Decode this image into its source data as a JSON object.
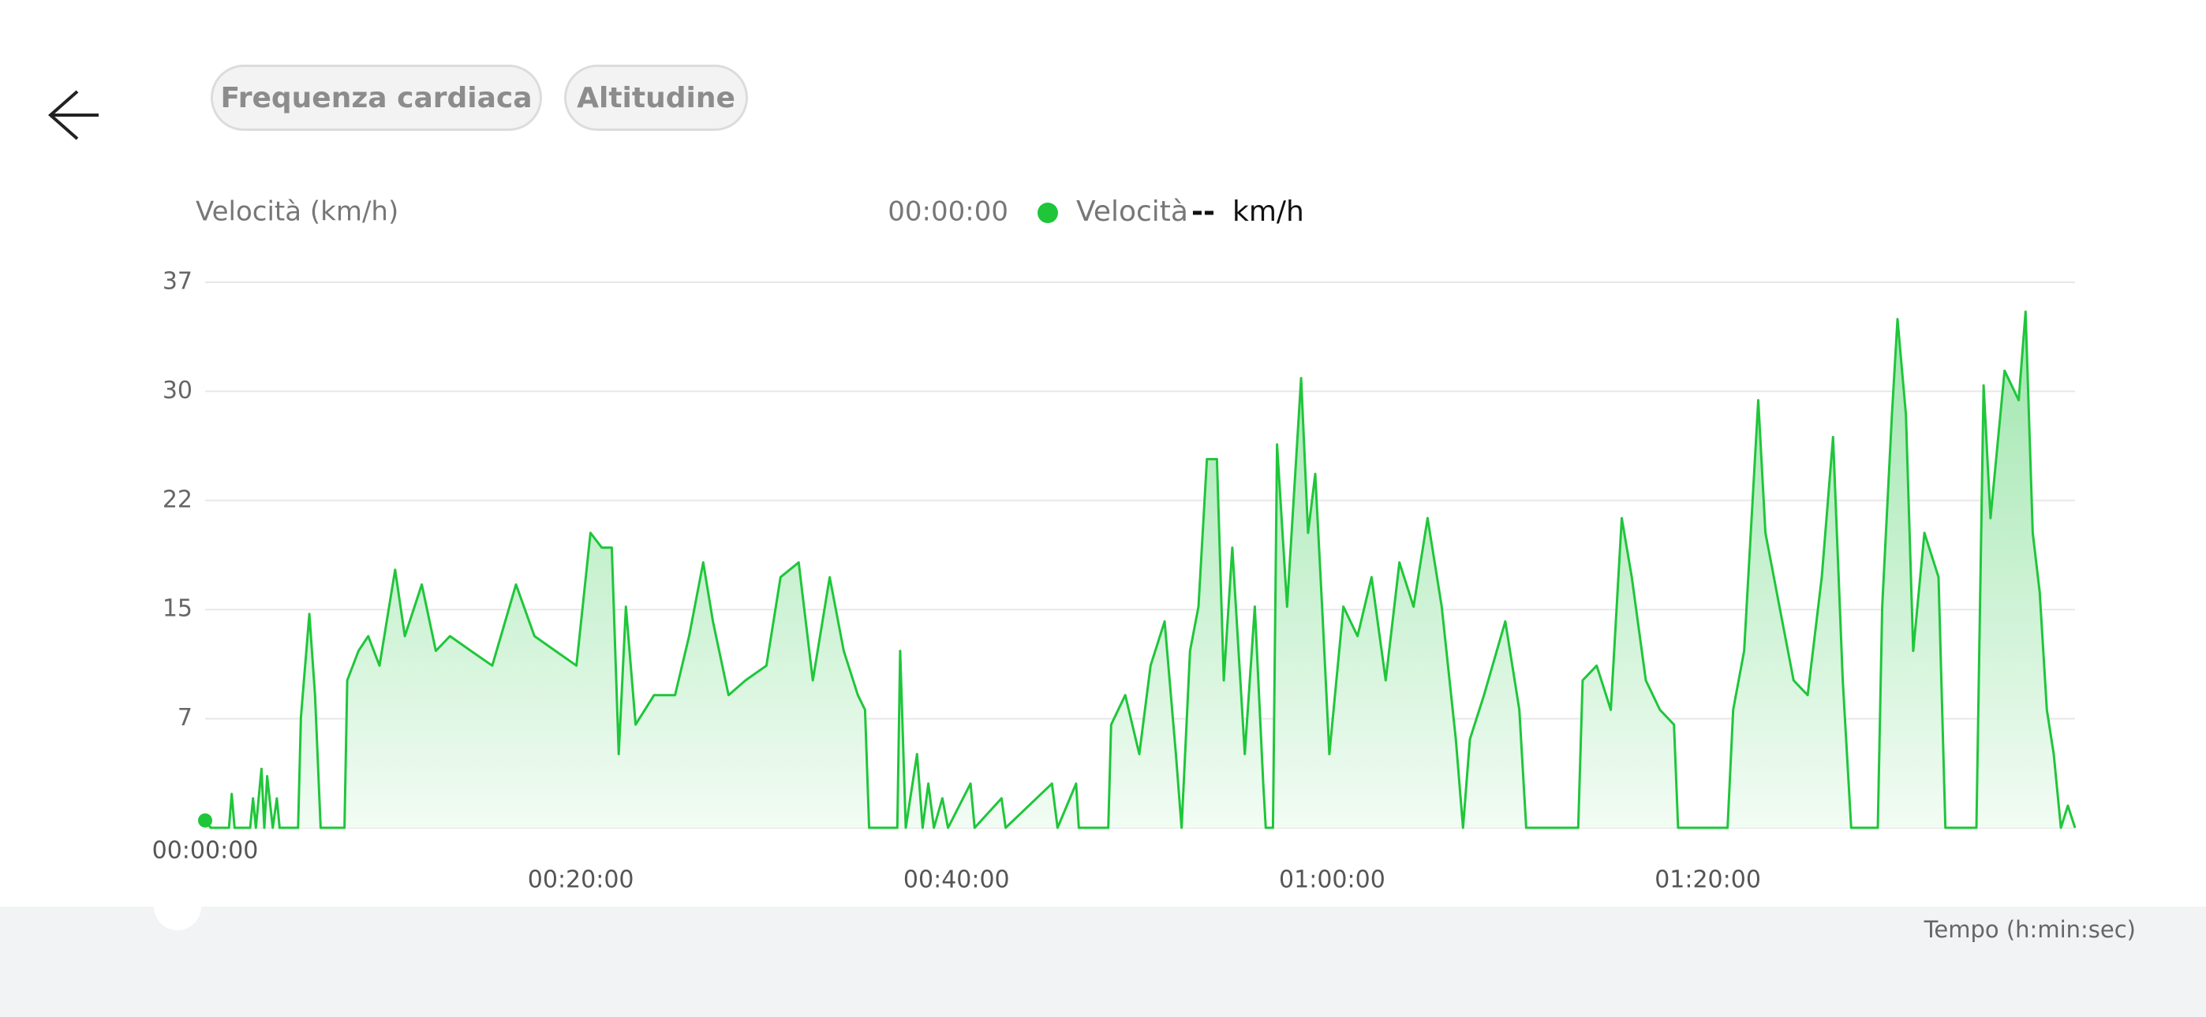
{
  "buttons": [
    "Frequenza cardiaca",
    "Altitudine"
  ],
  "chart_data": {
    "type": "area",
    "y_label": "Velocità (km/h)",
    "x_label": "Tempo (h:min:sec)",
    "readout": {
      "time": "00:00:00",
      "value": "--",
      "unit": "km/h"
    },
    "xlim": [
      0,
      5973
    ],
    "xticks": [
      {
        "value": 0,
        "label": "00:00:00"
      },
      {
        "value": 1200,
        "label": "00:20:00"
      },
      {
        "value": 2400,
        "label": "00:40:00"
      },
      {
        "value": 3600,
        "label": "01:00:00"
      },
      {
        "value": 4800,
        "label": "01:20:00"
      }
    ],
    "ylim": [
      0,
      37
    ],
    "yticks": [
      {
        "value": 7.4,
        "label": "7"
      },
      {
        "value": 14.8,
        "label": "15"
      },
      {
        "value": 22.2,
        "label": "22"
      },
      {
        "value": 29.6,
        "label": "30"
      },
      37
    ],
    "grid": true,
    "x": [
      0,
      18,
      76,
      85,
      94,
      144,
      153,
      162,
      180,
      189,
      198,
      216,
      229,
      238,
      297,
      306,
      333,
      351,
      369,
      445,
      454,
      490,
      521,
      557,
      607,
      638,
      692,
      737,
      782,
      849,
      917,
      993,
      1052,
      1119,
      1186,
      1231,
      1267,
      1299,
      1321,
      1344,
      1375,
      1434,
      1501,
      1546,
      1591,
      1622,
      1672,
      1726,
      1793,
      1838,
      1896,
      1941,
      1995,
      2040,
      2085,
      2108,
      2121,
      2211,
      2220,
      2238,
      2274,
      2292,
      2310,
      2328,
      2355,
      2373,
      2445,
      2458,
      2544,
      2557,
      2705,
      2723,
      2782,
      2791,
      2885,
      2894,
      2939,
      2984,
      3020,
      3065,
      3101,
      3119,
      3146,
      3173,
      3200,
      3232,
      3254,
      3281,
      3321,
      3353,
      3380,
      3388,
      3411,
      3424,
      3456,
      3501,
      3523,
      3546,
      3568,
      3591,
      3636,
      3681,
      3726,
      3771,
      3815,
      3860,
      3905,
      3950,
      3995,
      4018,
      4040,
      4085,
      4153,
      4198,
      4220,
      4386,
      4400,
      4445,
      4490,
      4525,
      4557,
      4602,
      4647,
      4692,
      4705,
      4863,
      4881,
      4916,
      4961,
      4984,
      5029,
      5074,
      5119,
      5164,
      5200,
      5231,
      5258,
      5343,
      5357,
      5388,
      5406,
      5433,
      5456,
      5492,
      5537,
      5559,
      5658,
      5681,
      5703,
      5748,
      5793,
      5815,
      5838,
      5860,
      5883,
      5905,
      5928,
      5950,
      5973
    ],
    "series": [
      {
        "name": "Velocità",
        "color": "#1fc63a",
        "values": [
          0.5,
          0,
          0,
          2.3,
          0,
          0,
          2,
          0,
          4,
          0,
          3.5,
          0,
          2,
          0,
          0,
          7.5,
          14.5,
          9,
          0,
          0,
          10,
          12,
          13,
          11,
          17.5,
          13,
          16.5,
          12,
          13,
          12,
          11,
          16.5,
          13,
          12,
          11,
          20,
          19,
          19,
          5,
          15,
          7,
          9,
          9,
          13,
          18,
          14,
          9,
          10,
          11,
          17,
          18,
          10,
          17,
          12,
          9,
          8,
          0,
          0,
          12,
          0,
          5,
          0,
          3,
          0,
          2,
          0,
          3,
          0,
          2,
          0,
          3,
          0,
          3,
          0,
          0,
          7,
          9,
          5,
          11,
          14,
          5,
          0,
          12,
          15,
          25,
          25,
          10,
          19,
          5,
          15,
          3,
          0,
          0,
          26,
          15,
          30.5,
          20,
          24,
          15,
          5,
          15,
          13,
          17,
          10,
          18,
          15,
          21,
          15,
          6,
          0,
          6,
          9,
          14,
          8,
          0,
          0,
          10,
          11,
          8,
          21,
          17,
          10,
          8,
          7,
          0,
          0,
          8,
          12,
          29,
          20,
          15,
          10,
          9,
          17,
          26.5,
          10,
          0,
          0,
          15,
          28,
          34.5,
          28,
          12,
          20,
          17,
          0,
          0,
          30,
          21,
          31,
          29,
          35,
          20,
          16,
          8,
          5,
          0,
          1.5,
          0
        ]
      }
    ]
  }
}
